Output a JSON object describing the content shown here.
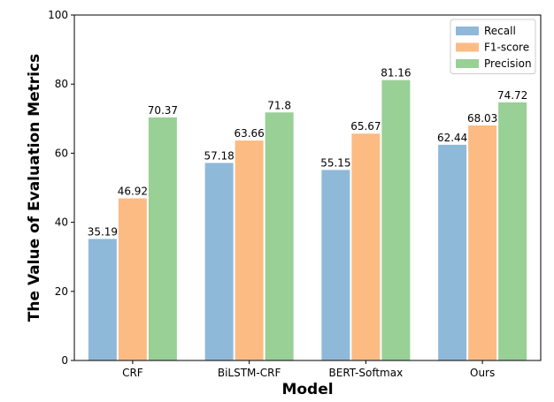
{
  "chart_data": {
    "type": "bar",
    "title": "",
    "xlabel": "Model",
    "ylabel": "The Value of Evaluation Metrics",
    "ylim": [
      0,
      100
    ],
    "yticks": [
      0,
      20,
      40,
      60,
      80,
      100
    ],
    "grid": false,
    "legend_position": "top-right",
    "categories": [
      "CRF",
      "BiLSTM-CRF",
      "BERT-Softmax",
      "Ours"
    ],
    "series": [
      {
        "name": "Recall",
        "color": "#8fb9d9",
        "values": [
          35.19,
          57.18,
          55.15,
          62.44
        ]
      },
      {
        "name": "F1-score",
        "color": "#fdbb84",
        "values": [
          46.92,
          63.66,
          65.67,
          68.03
        ]
      },
      {
        "name": "Precision",
        "color": "#98d095",
        "values": [
          70.37,
          71.8,
          81.16,
          74.72
        ]
      }
    ]
  }
}
